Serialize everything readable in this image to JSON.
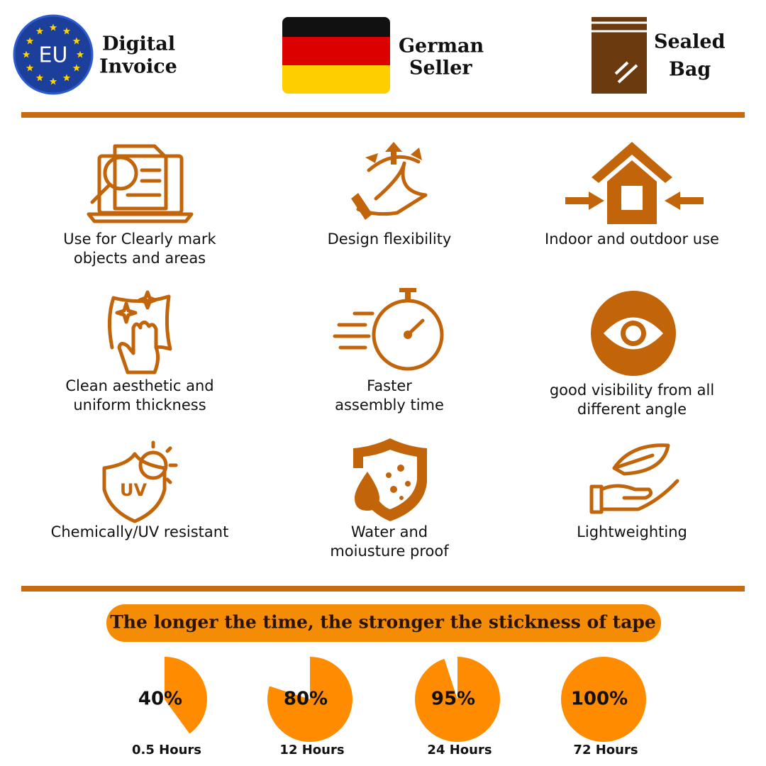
{
  "header": {
    "badges": [
      {
        "icon_text": "EU",
        "lines": [
          "Digital",
          "Invoice"
        ]
      },
      {
        "lines": [
          "German",
          "Seller"
        ]
      },
      {
        "lines": [
          "Sealed",
          "Bag"
        ]
      }
    ]
  },
  "features": [
    {
      "lines": [
        "Use for Clearly mark",
        "objects and areas"
      ]
    },
    {
      "lines": [
        "Design flexibility"
      ]
    },
    {
      "lines": [
        "Indoor and outdoor use"
      ]
    },
    {
      "lines": [
        "Clean aesthetic and",
        "uniform thickness"
      ]
    },
    {
      "lines": [
        "Faster",
        "assembly time"
      ]
    },
    {
      "lines": [
        "good visibility from all",
        "different angle"
      ]
    },
    {
      "lines": [
        "Chemically/UV resistant"
      ]
    },
    {
      "lines": [
        "Water and",
        "moiusture proof"
      ]
    },
    {
      "lines": [
        "Lightweighting"
      ]
    }
  ],
  "stickiness": {
    "title": "The longer the time, the stronger the stickness of tape",
    "items": [
      {
        "value": 40,
        "value_label": "40%",
        "time": "0.5 Hours"
      },
      {
        "value": 80,
        "value_label": "80%",
        "time": "12 Hours"
      },
      {
        "value": 95,
        "value_label": "95%",
        "time": "24 Hours"
      },
      {
        "value": 100,
        "value_label": "100%",
        "time": "72 Hours"
      }
    ]
  }
}
